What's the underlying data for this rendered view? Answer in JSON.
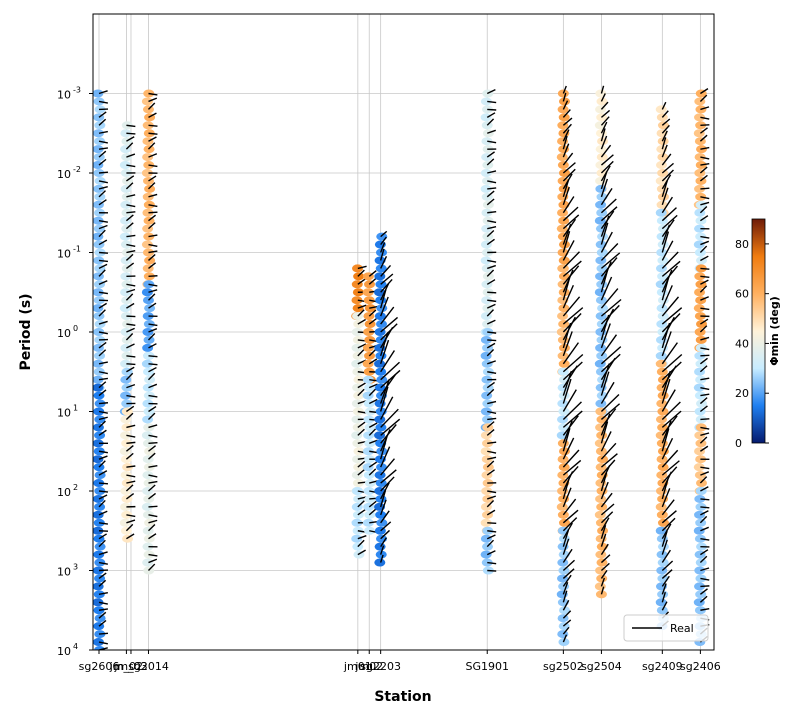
{
  "chart_data": {
    "type": "scatter",
    "title": "",
    "xlabel": "Station",
    "ylabel": "Period (s)",
    "y_scale": "log",
    "y_inverted": true,
    "ylim": [
      0.0001,
      10000
    ],
    "grid": true,
    "y_ticks": [
      {
        "exp": "-3",
        "label": "10"
      },
      {
        "exp": "-2",
        "label": "10"
      },
      {
        "exp": "-1",
        "label": "10"
      },
      {
        "exp": "0",
        "label": "10"
      },
      {
        "exp": "1",
        "label": "10"
      },
      {
        "exp": "2",
        "label": "10"
      },
      {
        "exp": "3",
        "label": "10"
      },
      {
        "exp": "4",
        "label": "10"
      }
    ],
    "stations": [
      {
        "label": "sg2606",
        "x": 0.0
      },
      {
        "label": "jm_02",
        "x": 0.36
      },
      {
        "label": "jm_03",
        "x": 0.42
      },
      {
        "label": "sg2014",
        "x": 0.65
      },
      {
        "label": "jm01",
        "x": 3.4
      },
      {
        "label": "jm02",
        "x": 3.55
      },
      {
        "label": "sg2203",
        "x": 3.7
      },
      {
        "label": "SG1901",
        "x": 5.1
      },
      {
        "label": "sg2502",
        "x": 6.1
      },
      {
        "label": "sg2504",
        "x": 6.6
      },
      {
        "label": "sg2409",
        "x": 7.4
      },
      {
        "label": "sg2406",
        "x": 7.9
      }
    ],
    "tick_text": [
      "sg2606",
      "jm_02",
      "jm_03",
      "sg2014",
      "jm01",
      "jm02",
      "sg2203",
      "SG1901",
      "sg2502",
      "sg2504",
      "sg2409",
      "sg2406"
    ],
    "columns": [
      {
        "x": 0.0,
        "ranges": [
          [
            -3.0,
            0.7,
            25
          ],
          [
            0.7,
            4.0,
            15
          ]
        ],
        "arrows": "mixed"
      },
      {
        "x": 0.36,
        "ranges": [
          [
            -2.6,
            0.5,
            35
          ],
          [
            0.5,
            1.0,
            25
          ],
          [
            1.0,
            2.6,
            45
          ]
        ],
        "arrows": "mixed"
      },
      {
        "x": 0.65,
        "ranges": [
          [
            -3.0,
            -0.6,
            58
          ],
          [
            -0.6,
            0.3,
            20
          ],
          [
            0.3,
            1.2,
            30
          ],
          [
            1.2,
            3.0,
            38
          ]
        ],
        "arrows": "mixed"
      },
      {
        "x": 3.4,
        "ranges": [
          [
            -0.8,
            -0.2,
            72
          ],
          [
            -0.2,
            2.0,
            40
          ],
          [
            2.0,
            2.8,
            30
          ]
        ],
        "arrows": "mixed"
      },
      {
        "x": 3.55,
        "ranges": [
          [
            -0.7,
            0.6,
            65
          ],
          [
            0.6,
            2.5,
            30
          ]
        ],
        "arrows": "mixed"
      },
      {
        "x": 3.7,
        "ranges": [
          [
            -1.2,
            2.9,
            15
          ]
        ],
        "arrows": "long"
      },
      {
        "x": 5.1,
        "ranges": [
          [
            -3.0,
            0.0,
            35
          ],
          [
            0.0,
            1.2,
            25
          ],
          [
            1.2,
            2.5,
            52
          ],
          [
            2.5,
            3.0,
            25
          ]
        ],
        "arrows": "short"
      },
      {
        "x": 6.1,
        "ranges": [
          [
            -3.0,
            -0.8,
            62
          ],
          [
            -0.8,
            0.5,
            58
          ],
          [
            0.5,
            1.4,
            30
          ],
          [
            1.4,
            2.5,
            60
          ],
          [
            2.5,
            3.9,
            25
          ]
        ],
        "arrows": "long"
      },
      {
        "x": 6.6,
        "ranges": [
          [
            -3.0,
            -1.8,
            45
          ],
          [
            -1.8,
            1.0,
            25
          ],
          [
            1.0,
            3.3,
            58
          ]
        ],
        "arrows": "long"
      },
      {
        "x": 7.4,
        "ranges": [
          [
            -2.8,
            -1.5,
            50
          ],
          [
            -1.5,
            0.4,
            30
          ],
          [
            0.4,
            2.5,
            60
          ],
          [
            2.5,
            3.7,
            25
          ]
        ],
        "arrows": "long"
      },
      {
        "x": 7.9,
        "ranges": [
          [
            -3.0,
            -1.6,
            58
          ],
          [
            -1.6,
            -0.8,
            30
          ],
          [
            -0.8,
            0.2,
            63
          ],
          [
            0.2,
            1.2,
            30
          ],
          [
            1.2,
            2.0,
            55
          ],
          [
            2.0,
            3.9,
            25
          ]
        ],
        "arrows": "mixed"
      }
    ],
    "legend": {
      "entries": [
        "Real"
      ],
      "placement": "bottom-right"
    },
    "colorbar": {
      "label_text": "Φmin (deg)",
      "ticks": [
        "0",
        "20",
        "40",
        "60",
        "80"
      ],
      "min": 0,
      "max": 90,
      "colors": [
        "#051a6e",
        "#1f7ff0",
        "#c8ecff",
        "#fff2d8",
        "#ffb060",
        "#f07c10",
        "#6e1b08"
      ]
    }
  }
}
